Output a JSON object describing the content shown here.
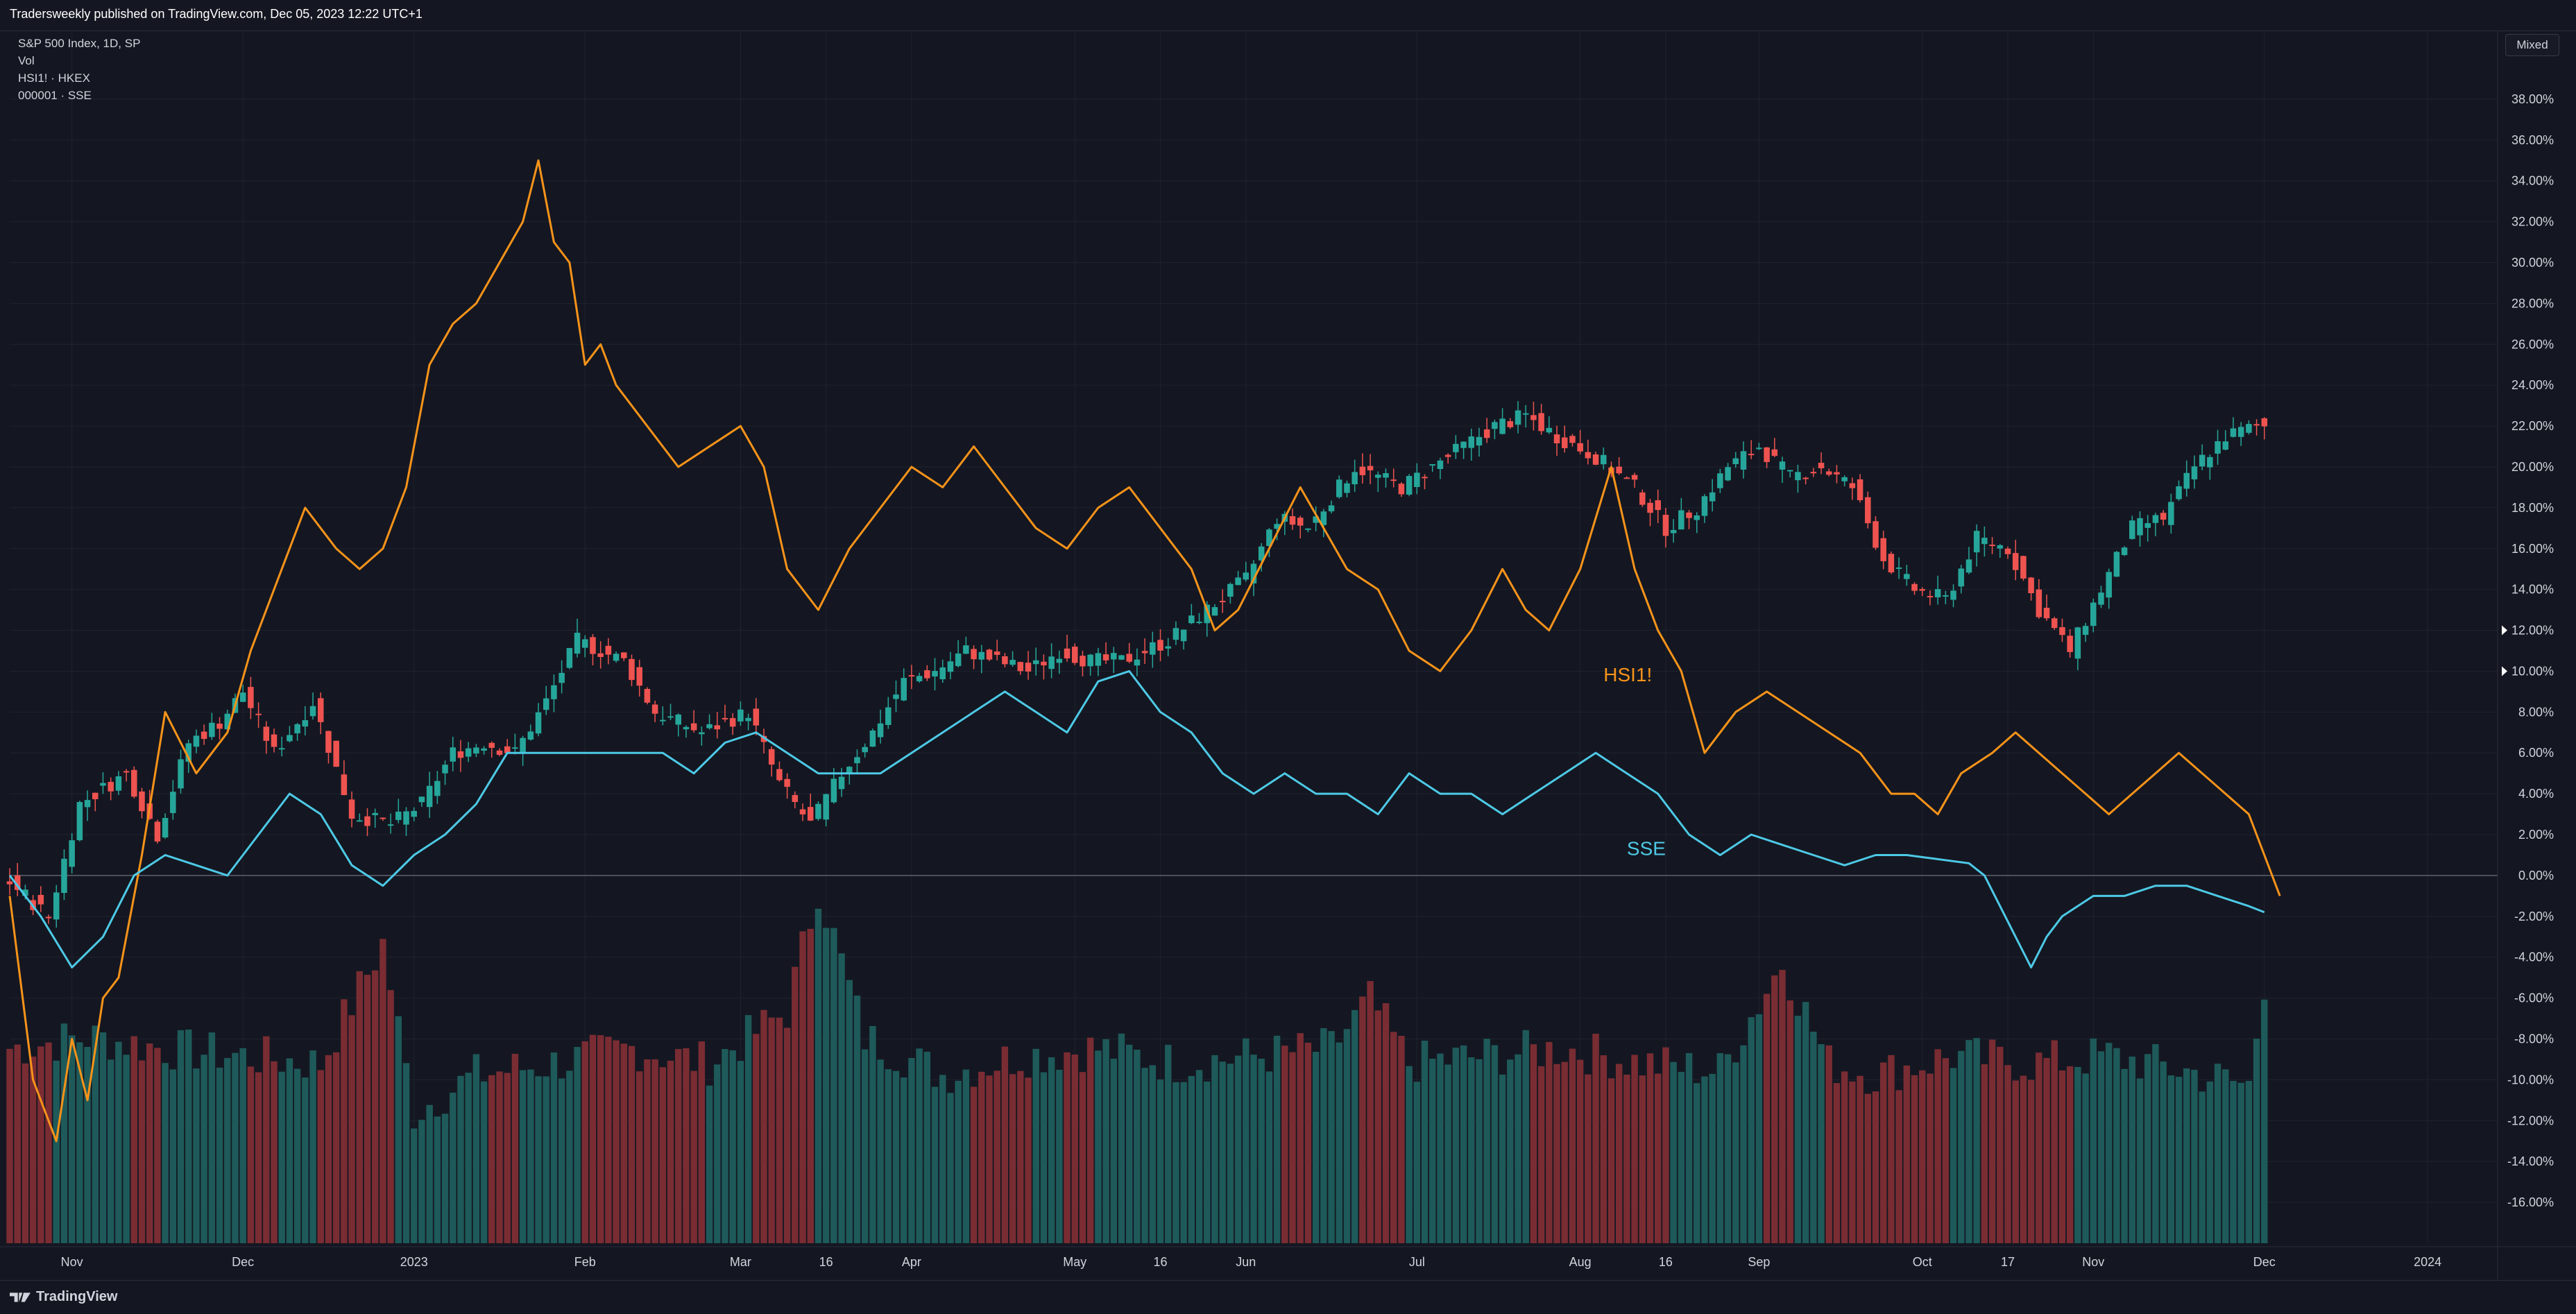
{
  "header": {
    "published": "Tradersweekly published on TradingView.com, Dec 05, 2023 12:22 UTC+1"
  },
  "legend": {
    "main": "S&P 500 Index, 1D, SP",
    "vol": "Vol",
    "hsi": "HSI1! · HKEX",
    "sse": "000001 · SSE"
  },
  "scale_button": "Mixed",
  "footer": {
    "brand": "TradingView"
  },
  "colors": {
    "up": "#26a69a",
    "down": "#ef5350",
    "vol_up": "#1e5a5a",
    "vol_down": "#7a2c33",
    "hsi": "#f7931a",
    "sse": "#4dc9e6",
    "grid": "#1f2330",
    "zero": "#5d6272"
  },
  "chart_data": {
    "type": "line",
    "ylim": [
      -18,
      40
    ],
    "y_ticks": [
      "38.00%",
      "36.00%",
      "34.00%",
      "32.00%",
      "30.00%",
      "28.00%",
      "26.00%",
      "24.00%",
      "22.00%",
      "20.00%",
      "18.00%",
      "16.00%",
      "14.00%",
      "12.00%",
      "10.00%",
      "8.00%",
      "6.00%",
      "4.00%",
      "2.00%",
      "0.00%",
      "-2.00%",
      "-4.00%",
      "-6.00%",
      "-8.00%",
      "-10.00%",
      "-12.00%",
      "-14.00%",
      "-16.00%"
    ],
    "y_tick_values": [
      38,
      36,
      34,
      32,
      30,
      28,
      26,
      24,
      22,
      20,
      18,
      16,
      14,
      12,
      10,
      8,
      6,
      4,
      2,
      0,
      -2,
      -4,
      -6,
      -8,
      -10,
      -12,
      -14,
      -16
    ],
    "x_ticks": [
      {
        "label": "Nov",
        "t": 8
      },
      {
        "label": "Dec",
        "t": 30
      },
      {
        "label": "2023",
        "t": 52
      },
      {
        "label": "Feb",
        "t": 74
      },
      {
        "label": "Mar",
        "t": 94
      },
      {
        "label": "16",
        "t": 105
      },
      {
        "label": "Apr",
        "t": 116
      },
      {
        "label": "May",
        "t": 137
      },
      {
        "label": "16",
        "t": 148
      },
      {
        "label": "Jun",
        "t": 159
      },
      {
        "label": "Jul",
        "t": 181
      },
      {
        "label": "Aug",
        "t": 202
      },
      {
        "label": "16",
        "t": 213
      },
      {
        "label": "Sep",
        "t": 225
      },
      {
        "label": "Oct",
        "t": 246
      },
      {
        "label": "17",
        "t": 257
      },
      {
        "label": "Nov",
        "t": 268
      },
      {
        "label": "Dec",
        "t": 290
      },
      {
        "label": "2024",
        "t": 311
      }
    ],
    "annotations": [
      {
        "text": "HSI1!",
        "t": 205,
        "y": 9.5,
        "color": "#f7931a"
      },
      {
        "text": "SSE",
        "t": 208,
        "y": 1.0,
        "color": "#4dc9e6"
      }
    ],
    "series": [
      {
        "name": "S&P 500 Index",
        "kind": "candlestick",
        "color_up": "#26a69a",
        "color_down": "#ef5350",
        "points": [
          [
            0,
            0
          ],
          [
            6,
            -2
          ],
          [
            10,
            3.5
          ],
          [
            16,
            5
          ],
          [
            20,
            2
          ],
          [
            24,
            6.5
          ],
          [
            28,
            7.5
          ],
          [
            31,
            9
          ],
          [
            35,
            6
          ],
          [
            40,
            8.5
          ],
          [
            45,
            3
          ],
          [
            50,
            2.5
          ],
          [
            54,
            3.5
          ],
          [
            58,
            6
          ],
          [
            62,
            6.5
          ],
          [
            66,
            6
          ],
          [
            70,
            8.5
          ],
          [
            74,
            11.5
          ],
          [
            80,
            10.5
          ],
          [
            84,
            8
          ],
          [
            90,
            7
          ],
          [
            96,
            8
          ],
          [
            100,
            4.5
          ],
          [
            104,
            2.5
          ],
          [
            108,
            5
          ],
          [
            112,
            7
          ],
          [
            116,
            9.5
          ],
          [
            120,
            10
          ],
          [
            124,
            11
          ],
          [
            128,
            10.5
          ],
          [
            132,
            10
          ],
          [
            136,
            11
          ],
          [
            140,
            10.5
          ],
          [
            144,
            10.5
          ],
          [
            150,
            11.5
          ],
          [
            155,
            13
          ],
          [
            160,
            14.5
          ],
          [
            164,
            17.5
          ],
          [
            168,
            17
          ],
          [
            174,
            20
          ],
          [
            180,
            19
          ],
          [
            186,
            20.5
          ],
          [
            192,
            22
          ],
          [
            196,
            22.5
          ],
          [
            200,
            21.5
          ],
          [
            205,
            20.5
          ],
          [
            210,
            19
          ],
          [
            214,
            17
          ],
          [
            218,
            18
          ],
          [
            222,
            20
          ],
          [
            226,
            21
          ],
          [
            230,
            19.5
          ],
          [
            234,
            20
          ],
          [
            238,
            19
          ],
          [
            242,
            15.5
          ],
          [
            246,
            14
          ],
          [
            250,
            13.5
          ],
          [
            254,
            16.5
          ],
          [
            258,
            16
          ],
          [
            262,
            13
          ],
          [
            266,
            11
          ],
          [
            270,
            14
          ],
          [
            274,
            17
          ],
          [
            278,
            17.5
          ],
          [
            282,
            20
          ],
          [
            286,
            21.5
          ],
          [
            290,
            22
          ]
        ]
      },
      {
        "name": "HSI1!",
        "kind": "line",
        "color": "#f7931a",
        "points": [
          [
            0,
            -1
          ],
          [
            3,
            -10
          ],
          [
            6,
            -13
          ],
          [
            8,
            -8
          ],
          [
            10,
            -11
          ],
          [
            12,
            -6
          ],
          [
            14,
            -5
          ],
          [
            17,
            1
          ],
          [
            20,
            8
          ],
          [
            24,
            5
          ],
          [
            28,
            7
          ],
          [
            31,
            11
          ],
          [
            35,
            15
          ],
          [
            38,
            18
          ],
          [
            42,
            16
          ],
          [
            45,
            15
          ],
          [
            48,
            16
          ],
          [
            51,
            19
          ],
          [
            54,
            25
          ],
          [
            57,
            27
          ],
          [
            60,
            28
          ],
          [
            63,
            30
          ],
          [
            66,
            32
          ],
          [
            68,
            35
          ],
          [
            70,
            31
          ],
          [
            72,
            30
          ],
          [
            74,
            25
          ],
          [
            76,
            26
          ],
          [
            78,
            24
          ],
          [
            82,
            22
          ],
          [
            86,
            20
          ],
          [
            90,
            21
          ],
          [
            94,
            22
          ],
          [
            97,
            20
          ],
          [
            100,
            15
          ],
          [
            104,
            13
          ],
          [
            108,
            16
          ],
          [
            112,
            18
          ],
          [
            116,
            20
          ],
          [
            120,
            19
          ],
          [
            124,
            21
          ],
          [
            128,
            19
          ],
          [
            132,
            17
          ],
          [
            136,
            16
          ],
          [
            140,
            18
          ],
          [
            144,
            19
          ],
          [
            148,
            17
          ],
          [
            152,
            15
          ],
          [
            155,
            12
          ],
          [
            158,
            13
          ],
          [
            162,
            16
          ],
          [
            166,
            19
          ],
          [
            169,
            17
          ],
          [
            172,
            15
          ],
          [
            176,
            14
          ],
          [
            180,
            11
          ],
          [
            184,
            10
          ],
          [
            188,
            12
          ],
          [
            192,
            15
          ],
          [
            195,
            13
          ],
          [
            198,
            12
          ],
          [
            202,
            15
          ],
          [
            206,
            20
          ],
          [
            209,
            15
          ],
          [
            212,
            12
          ],
          [
            215,
            10
          ],
          [
            218,
            6
          ],
          [
            222,
            8
          ],
          [
            226,
            9
          ],
          [
            230,
            8
          ],
          [
            234,
            7
          ],
          [
            238,
            6
          ],
          [
            242,
            4
          ],
          [
            245,
            4
          ],
          [
            248,
            3
          ],
          [
            251,
            5
          ],
          [
            255,
            6
          ],
          [
            258,
            7
          ],
          [
            261,
            6
          ],
          [
            264,
            5
          ],
          [
            267,
            4
          ],
          [
            270,
            3
          ],
          [
            273,
            4
          ],
          [
            276,
            5
          ],
          [
            279,
            6
          ],
          [
            282,
            5
          ],
          [
            285,
            4
          ],
          [
            288,
            3
          ],
          [
            290,
            1
          ],
          [
            292,
            -1
          ]
        ]
      },
      {
        "name": "SSE",
        "kind": "line",
        "color": "#4dc9e6",
        "points": [
          [
            0,
            0
          ],
          [
            4,
            -2
          ],
          [
            8,
            -4.5
          ],
          [
            12,
            -3
          ],
          [
            16,
            0
          ],
          [
            20,
            1
          ],
          [
            24,
            0.5
          ],
          [
            28,
            0
          ],
          [
            32,
            2
          ],
          [
            36,
            4
          ],
          [
            40,
            3
          ],
          [
            44,
            0.5
          ],
          [
            48,
            -0.5
          ],
          [
            52,
            1
          ],
          [
            56,
            2
          ],
          [
            60,
            3.5
          ],
          [
            64,
            6
          ],
          [
            68,
            6
          ],
          [
            72,
            6
          ],
          [
            76,
            6
          ],
          [
            80,
            6
          ],
          [
            84,
            6
          ],
          [
            88,
            5
          ],
          [
            92,
            6.5
          ],
          [
            96,
            7
          ],
          [
            100,
            6
          ],
          [
            104,
            5
          ],
          [
            108,
            5
          ],
          [
            112,
            5
          ],
          [
            116,
            6
          ],
          [
            120,
            7
          ],
          [
            124,
            8
          ],
          [
            128,
            9
          ],
          [
            132,
            8
          ],
          [
            136,
            7
          ],
          [
            140,
            9.5
          ],
          [
            144,
            10
          ],
          [
            148,
            8
          ],
          [
            152,
            7
          ],
          [
            156,
            5
          ],
          [
            160,
            4
          ],
          [
            164,
            5
          ],
          [
            168,
            4
          ],
          [
            172,
            4
          ],
          [
            176,
            3
          ],
          [
            180,
            5
          ],
          [
            184,
            4
          ],
          [
            188,
            4
          ],
          [
            192,
            3
          ],
          [
            196,
            4
          ],
          [
            200,
            5
          ],
          [
            204,
            6
          ],
          [
            208,
            5
          ],
          [
            212,
            4
          ],
          [
            216,
            2
          ],
          [
            220,
            1
          ],
          [
            224,
            2
          ],
          [
            228,
            1.5
          ],
          [
            232,
            1
          ],
          [
            236,
            0.5
          ],
          [
            240,
            1
          ],
          [
            244,
            1
          ],
          [
            248,
            0.8
          ],
          [
            252,
            0.6
          ],
          [
            254,
            0
          ],
          [
            256,
            -1.5
          ],
          [
            258,
            -3
          ],
          [
            260,
            -4.5
          ],
          [
            262,
            -3
          ],
          [
            264,
            -2
          ],
          [
            268,
            -1
          ],
          [
            272,
            -1
          ],
          [
            276,
            -0.5
          ],
          [
            280,
            -0.5
          ],
          [
            284,
            -1
          ],
          [
            288,
            -1.5
          ],
          [
            290,
            -1.8
          ]
        ]
      },
      {
        "name": "Vol",
        "kind": "volume",
        "color_up": "#1e5a5a",
        "color_down": "#7a2c33",
        "points": [
          [
            0,
            0.52
          ],
          [
            10,
            0.55
          ],
          [
            20,
            0.52
          ],
          [
            30,
            0.5
          ],
          [
            40,
            0.48
          ],
          [
            48,
            0.8
          ],
          [
            52,
            0.35
          ],
          [
            60,
            0.45
          ],
          [
            70,
            0.48
          ],
          [
            80,
            0.52
          ],
          [
            90,
            0.48
          ],
          [
            100,
            0.62
          ],
          [
            104,
            0.95
          ],
          [
            110,
            0.55
          ],
          [
            120,
            0.45
          ],
          [
            130,
            0.5
          ],
          [
            140,
            0.52
          ],
          [
            150,
            0.48
          ],
          [
            160,
            0.5
          ],
          [
            170,
            0.52
          ],
          [
            175,
            0.65
          ],
          [
            180,
            0.48
          ],
          [
            190,
            0.5
          ],
          [
            200,
            0.52
          ],
          [
            210,
            0.48
          ],
          [
            220,
            0.46
          ],
          [
            228,
            0.75
          ],
          [
            234,
            0.48
          ],
          [
            240,
            0.45
          ],
          [
            250,
            0.5
          ],
          [
            260,
            0.48
          ],
          [
            270,
            0.5
          ],
          [
            280,
            0.46
          ],
          [
            288,
            0.42
          ],
          [
            290,
            0.7
          ],
          [
            292,
            0.52
          ]
        ]
      }
    ]
  }
}
